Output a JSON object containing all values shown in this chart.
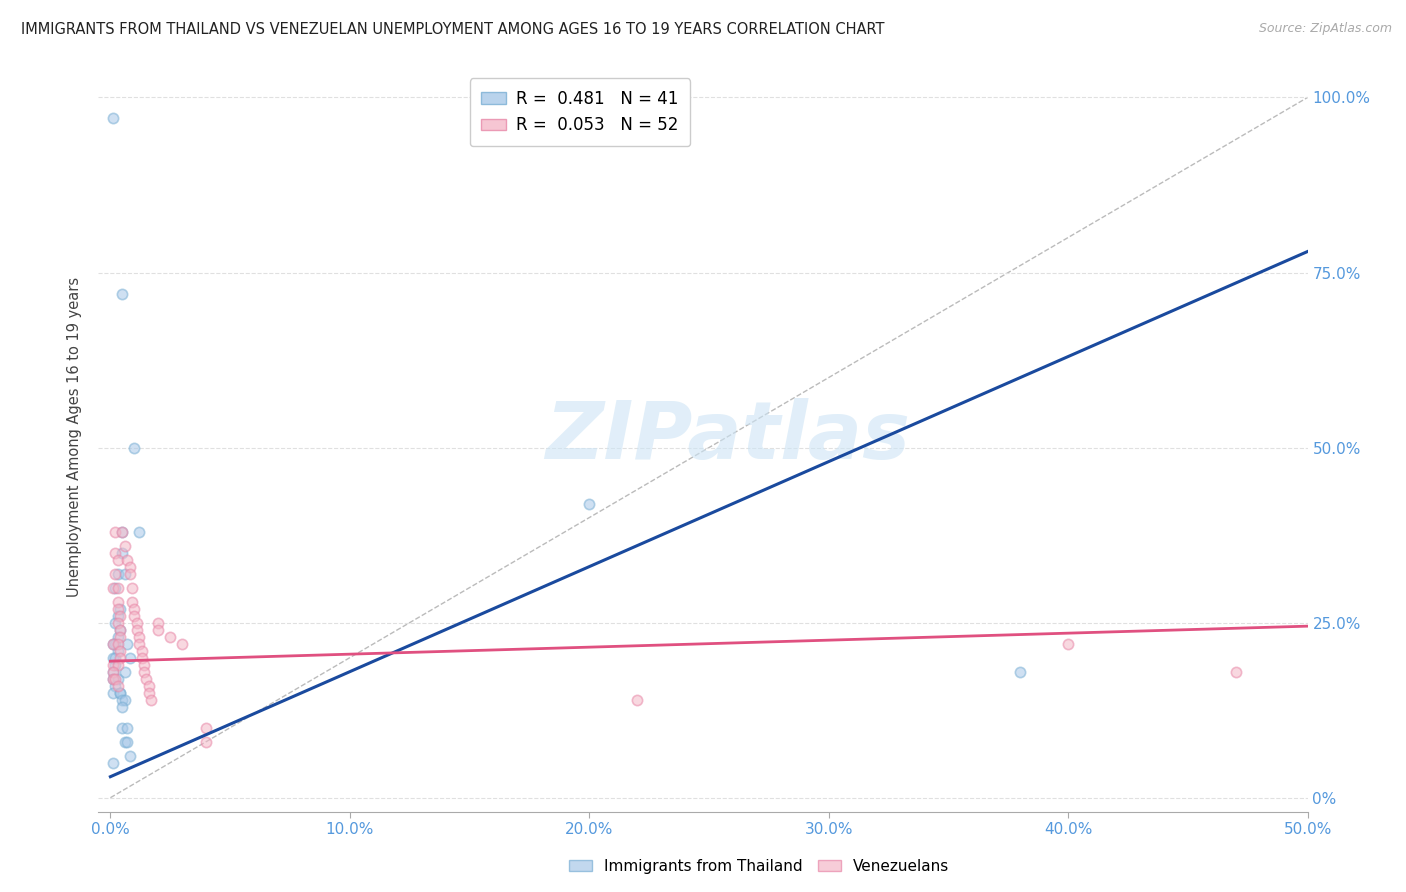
{
  "title": "IMMIGRANTS FROM THAILAND VS VENEZUELAN UNEMPLOYMENT AMONG AGES 16 TO 19 YEARS CORRELATION CHART",
  "source": "Source: ZipAtlas.com",
  "ylabel": "Unemployment Among Ages 16 to 19 years",
  "x_tick_labels": [
    "0.0%",
    "10.0%",
    "20.0%",
    "30.0%",
    "40.0%",
    "50.0%"
  ],
  "x_tick_values": [
    0.0,
    0.1,
    0.2,
    0.3,
    0.4,
    0.5
  ],
  "y_tick_labels": [
    "100.0%",
    "75.0%",
    "50.0%",
    "25.0%",
    "0%"
  ],
  "y_tick_values": [
    1.0,
    0.75,
    0.5,
    0.25,
    0.0
  ],
  "xlim": [
    -0.005,
    0.5
  ],
  "ylim": [
    -0.02,
    1.05
  ],
  "watermark_text": "ZIPatlas",
  "blue_scatter": [
    [
      0.001,
      0.97
    ],
    [
      0.005,
      0.72
    ],
    [
      0.01,
      0.5
    ],
    [
      0.012,
      0.38
    ],
    [
      0.005,
      0.35
    ],
    [
      0.003,
      0.32
    ],
    [
      0.002,
      0.3
    ],
    [
      0.004,
      0.27
    ],
    [
      0.003,
      0.26
    ],
    [
      0.002,
      0.25
    ],
    [
      0.004,
      0.24
    ],
    [
      0.003,
      0.23
    ],
    [
      0.002,
      0.22
    ],
    [
      0.001,
      0.22
    ],
    [
      0.003,
      0.21
    ],
    [
      0.001,
      0.2
    ],
    [
      0.002,
      0.2
    ],
    [
      0.002,
      0.19
    ],
    [
      0.001,
      0.18
    ],
    [
      0.001,
      0.17
    ],
    [
      0.003,
      0.17
    ],
    [
      0.002,
      0.16
    ],
    [
      0.001,
      0.15
    ],
    [
      0.004,
      0.15
    ],
    [
      0.005,
      0.38
    ],
    [
      0.006,
      0.32
    ],
    [
      0.007,
      0.22
    ],
    [
      0.008,
      0.2
    ],
    [
      0.006,
      0.18
    ],
    [
      0.004,
      0.15
    ],
    [
      0.005,
      0.14
    ],
    [
      0.006,
      0.14
    ],
    [
      0.005,
      0.13
    ],
    [
      0.005,
      0.1
    ],
    [
      0.007,
      0.1
    ],
    [
      0.006,
      0.08
    ],
    [
      0.007,
      0.08
    ],
    [
      0.008,
      0.06
    ],
    [
      0.2,
      0.42
    ],
    [
      0.38,
      0.18
    ],
    [
      0.001,
      0.05
    ]
  ],
  "pink_scatter": [
    [
      0.002,
      0.38
    ],
    [
      0.002,
      0.35
    ],
    [
      0.003,
      0.34
    ],
    [
      0.002,
      0.32
    ],
    [
      0.001,
      0.3
    ],
    [
      0.003,
      0.3
    ],
    [
      0.003,
      0.28
    ],
    [
      0.003,
      0.27
    ],
    [
      0.004,
      0.26
    ],
    [
      0.003,
      0.25
    ],
    [
      0.004,
      0.24
    ],
    [
      0.004,
      0.23
    ],
    [
      0.001,
      0.22
    ],
    [
      0.003,
      0.22
    ],
    [
      0.004,
      0.21
    ],
    [
      0.004,
      0.2
    ],
    [
      0.001,
      0.19
    ],
    [
      0.003,
      0.19
    ],
    [
      0.001,
      0.18
    ],
    [
      0.001,
      0.17
    ],
    [
      0.002,
      0.17
    ],
    [
      0.003,
      0.16
    ],
    [
      0.005,
      0.38
    ],
    [
      0.006,
      0.36
    ],
    [
      0.007,
      0.34
    ],
    [
      0.008,
      0.33
    ],
    [
      0.008,
      0.32
    ],
    [
      0.009,
      0.3
    ],
    [
      0.009,
      0.28
    ],
    [
      0.01,
      0.27
    ],
    [
      0.01,
      0.26
    ],
    [
      0.011,
      0.25
    ],
    [
      0.011,
      0.24
    ],
    [
      0.012,
      0.23
    ],
    [
      0.012,
      0.22
    ],
    [
      0.013,
      0.21
    ],
    [
      0.013,
      0.2
    ],
    [
      0.014,
      0.19
    ],
    [
      0.014,
      0.18
    ],
    [
      0.015,
      0.17
    ],
    [
      0.016,
      0.16
    ],
    [
      0.016,
      0.15
    ],
    [
      0.017,
      0.14
    ],
    [
      0.02,
      0.25
    ],
    [
      0.02,
      0.24
    ],
    [
      0.025,
      0.23
    ],
    [
      0.03,
      0.22
    ],
    [
      0.04,
      0.1
    ],
    [
      0.04,
      0.08
    ],
    [
      0.4,
      0.22
    ],
    [
      0.47,
      0.18
    ],
    [
      0.22,
      0.14
    ]
  ],
  "blue_line": {
    "x0": 0.0,
    "x1": 0.5,
    "y0": 0.03,
    "y1": 0.78
  },
  "pink_line": {
    "x0": 0.0,
    "x1": 0.5,
    "y0": 0.195,
    "y1": 0.245
  },
  "ref_line": {
    "x0": 0.0,
    "x1": 0.5,
    "y0": 0.0,
    "y1": 1.0
  },
  "blue_color": "#a8c8e8",
  "pink_color": "#f4b8c8",
  "blue_edge_color": "#7aafd4",
  "pink_edge_color": "#e888a8",
  "blue_line_color": "#1a4a9e",
  "pink_line_color": "#e05080",
  "ref_line_color": "#bbbbbb",
  "grid_color": "#e0e0e0",
  "right_axis_color": "#5599dd",
  "x_axis_color": "#5599dd",
  "background_color": "#ffffff",
  "title_fontsize": 10.5,
  "source_fontsize": 9,
  "scatter_size": 55,
  "scatter_alpha": 0.55,
  "legend_label_blue": "R =  0.481   N = 41",
  "legend_label_pink": "R =  0.053   N = 52",
  "bottom_legend_blue": "Immigrants from Thailand",
  "bottom_legend_pink": "Venezuelans"
}
